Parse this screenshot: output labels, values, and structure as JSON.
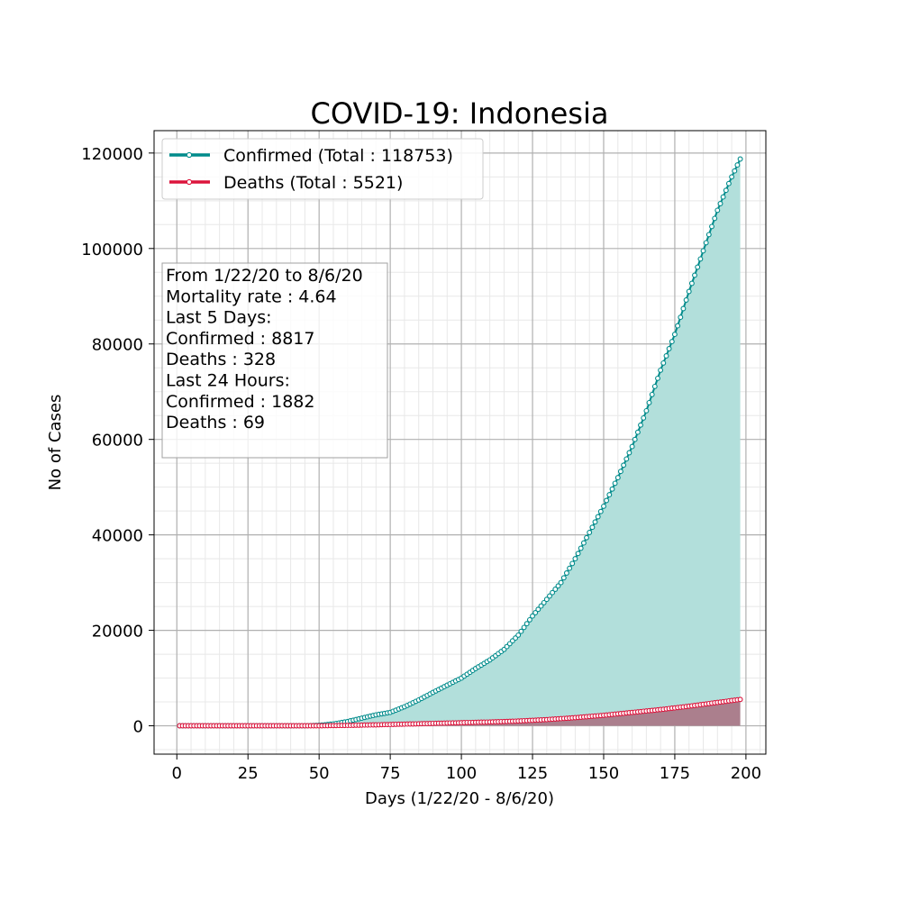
{
  "chart_data": {
    "type": "area",
    "title": "COVID-19: Indonesia",
    "xlabel": "Days (1/22/20 - 8/6/20)",
    "ylabel": "No of Cases",
    "xlim": [
      -8,
      207
    ],
    "ylim": [
      -5938,
      124690
    ],
    "x_ticks": [
      0,
      25,
      50,
      75,
      100,
      125,
      150,
      175,
      200
    ],
    "y_ticks": [
      0,
      20000,
      40000,
      60000,
      80000,
      100000,
      120000
    ],
    "grid": true,
    "legend_position": "top-left",
    "series": [
      {
        "name": "Confirmed (Total : 118753)",
        "color": "#008b8b",
        "fill_color": "#b2dfdb",
        "x": [
          1,
          40,
          45,
          50,
          55,
          60,
          65,
          70,
          75,
          80,
          85,
          90,
          95,
          100,
          105,
          110,
          115,
          120,
          125,
          130,
          135,
          140,
          145,
          150,
          155,
          160,
          165,
          170,
          175,
          180,
          185,
          190,
          195,
          198
        ],
        "values": [
          0,
          0,
          2,
          100,
          400,
          900,
          1600,
          2300,
          2800,
          4000,
          5400,
          7000,
          8500,
          10000,
          12000,
          13800,
          16000,
          19000,
          23000,
          26500,
          30000,
          35000,
          40500,
          46000,
          52000,
          58500,
          66000,
          74500,
          82000,
          91000,
          99500,
          108000,
          115000,
          118753
        ]
      },
      {
        "name": "Deaths (Total : 5521)",
        "color": "#dc143c",
        "fill_color": "#a96f7f",
        "x": [
          1,
          40,
          50,
          60,
          70,
          80,
          90,
          100,
          110,
          120,
          130,
          140,
          150,
          160,
          170,
          180,
          190,
          198
        ],
        "values": [
          0,
          0,
          10,
          80,
          200,
          350,
          500,
          650,
          800,
          1000,
          1300,
          1700,
          2200,
          2800,
          3400,
          4100,
          4900,
          5521
        ]
      }
    ],
    "annotation_lines": [
      "From 1/22/20 to 8/6/20",
      "Mortality rate : 4.64",
      "Last 5 Days:",
      "Confirmed : 8817",
      "Deaths : 328",
      "Last 24 Hours:",
      "Confirmed : 1882",
      "Deaths : 69"
    ]
  }
}
